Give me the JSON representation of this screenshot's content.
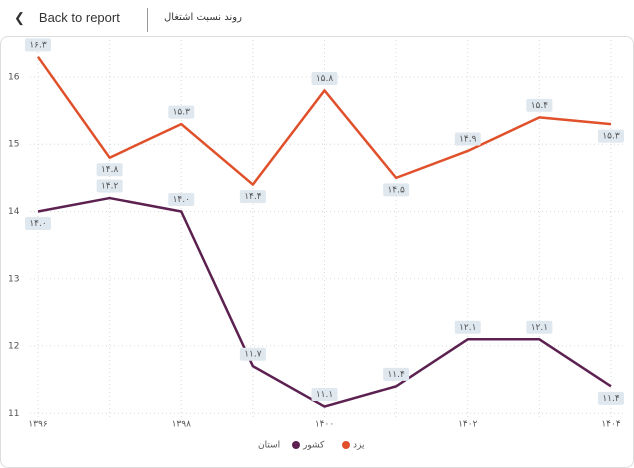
{
  "header": {
    "back": "Back to report"
  },
  "chart_data": {
    "type": "line",
    "title": "روند نسبت اشتغال",
    "categories": [
      "۱۳۹۶",
      null,
      "۱۳۹۸",
      null,
      "۱۴۰۰",
      null,
      "۱۴۰۲",
      null,
      "۱۴۰۴"
    ],
    "legend_title": "استان",
    "series": [
      {
        "name": "یزد",
        "color": "#e0502a",
        "values": [
          16.3,
          14.8,
          15.3,
          14.4,
          15.8,
          14.5,
          14.9,
          15.4,
          15.3
        ],
        "value_labels": [
          "۱۶.۳",
          "۱۴.۸",
          "۱۵.۳",
          "۱۴.۴",
          "۱۵.۸",
          "۱۴.۵",
          "۱۴.۹",
          "۱۵.۴",
          "۱۵.۳"
        ]
      },
      {
        "name": "کشور",
        "color": "#5c2150",
        "values": [
          14.0,
          14.2,
          14.0,
          11.7,
          11.1,
          11.4,
          12.1,
          12.1,
          11.4
        ],
        "value_labels": [
          "۱۴.۰",
          "۱۴.۲",
          "۱۴.۰",
          "۱۱.۷",
          "۱۱.۱",
          "۱۱.۴",
          "۱۲.۱",
          "۱۲.۱",
          "۱۱.۴"
        ]
      }
    ],
    "ylim": [
      10.9,
      16.55
    ],
    "yticks": [
      11,
      12,
      13,
      14,
      15,
      16
    ],
    "grid": true
  }
}
